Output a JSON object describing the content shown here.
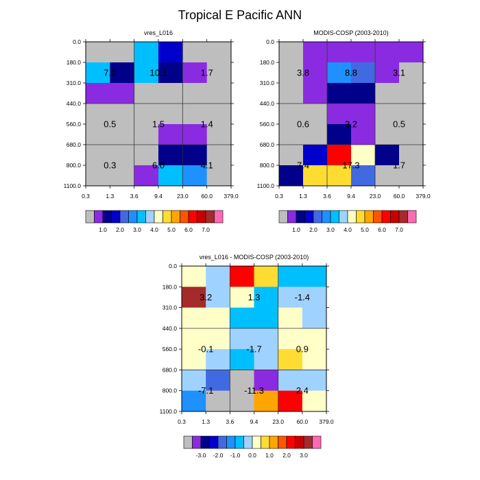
{
  "title": "Tropical E Pacific ANN",
  "colorbar_levels": {
    "abs": [
      "1.0",
      "2.0",
      "3.0",
      "4.0",
      "5.0",
      "6.0",
      "7.0"
    ],
    "diff": [
      "-3.0",
      "-2.0",
      "-1.0",
      "0.0",
      "1.0",
      "2.0",
      "3.0"
    ]
  },
  "colors": {
    "gray": "#bebebe",
    "purple": "#8a2be2",
    "darkblue": "#00008b",
    "blue": "#0000cd",
    "royal": "#4169e1",
    "dodger": "#1e90ff",
    "deepsky": "#00bfff",
    "lightblue": "#a0d2ff",
    "ivory": "#ffffc8",
    "gold": "#ffdc32",
    "orange": "#ffa500",
    "orangered": "#ff5500",
    "red": "#ff0000",
    "darkred": "#c80000",
    "brown": "#a52a2a",
    "pink": "#ff69b4"
  },
  "chart_data": [
    {
      "type": "heatmap",
      "title": "vres_L016",
      "x_ticks": [
        "0.3",
        "1.3",
        "3.6",
        "9.4",
        "23.0",
        "60.0",
        "379.0"
      ],
      "y_ticks": [
        "0.0",
        "180.0",
        "310.0",
        "440.0",
        "560.0",
        "680.0",
        "800.0",
        "1100.0"
      ],
      "cells": [
        [
          "gray",
          "gray",
          "deepsky",
          "blue",
          "gray",
          "gray"
        ],
        [
          "deepsky",
          "darkblue",
          "deepsky",
          "darkblue",
          "purple",
          "gray"
        ],
        [
          "purple",
          "purple",
          "gray",
          "gray",
          "gray",
          "gray"
        ],
        [
          "gray",
          "gray",
          "gray",
          "gray",
          "gray",
          "gray"
        ],
        [
          "gray",
          "gray",
          "gray",
          "purple",
          "purple",
          "gray"
        ],
        [
          "gray",
          "gray",
          "gray",
          "darkblue",
          "darkblue",
          "gray"
        ],
        [
          "gray",
          "gray",
          "purple",
          "deepsky",
          "dodger",
          "gray"
        ]
      ],
      "block_labels": [
        [
          "7.0",
          "10.1",
          "1.7"
        ],
        [
          "0.5",
          "1.5",
          "1.4"
        ],
        [
          "0.3",
          "6.0",
          "4.1"
        ]
      ]
    },
    {
      "type": "heatmap",
      "title": "MODIS-COSP (2003-2010)",
      "x_ticks": [
        "0.3",
        "1.3",
        "3.6",
        "9.4",
        "23.0",
        "60.0",
        "379.0"
      ],
      "y_ticks": [
        "0.0",
        "180.0",
        "310.0",
        "440.0",
        "560.0",
        "680.0",
        "800.0",
        "1100.0"
      ],
      "cells": [
        [
          "gray",
          "purple",
          "purple",
          "purple",
          "purple",
          "purple"
        ],
        [
          "gray",
          "purple",
          "dodger",
          "royal",
          "purple",
          "gray"
        ],
        [
          "gray",
          "purple",
          "darkblue",
          "darkblue",
          "gray",
          "gray"
        ],
        [
          "gray",
          "gray",
          "purple",
          "purple",
          "gray",
          "gray"
        ],
        [
          "gray",
          "gray",
          "darkblue",
          "purple",
          "gray",
          "gray"
        ],
        [
          "gray",
          "blue",
          "red",
          "ivory",
          "darkblue",
          "gray"
        ],
        [
          "darkblue",
          "gold",
          "gold",
          "royal",
          "gray",
          "gray"
        ]
      ],
      "block_labels": [
        [
          "3.8",
          "8.8",
          "3.1"
        ],
        [
          "0.6",
          "3.2",
          "0.5"
        ],
        [
          "7.4",
          "17.3",
          "1.7"
        ]
      ]
    },
    {
      "type": "heatmap",
      "title": "vres_L016 - MODIS-COSP (2003-2010)",
      "x_ticks": [
        "0.3",
        "1.3",
        "3.6",
        "9.4",
        "23.0",
        "60.0",
        "379.0"
      ],
      "y_ticks": [
        "0.0",
        "180.0",
        "310.0",
        "440.0",
        "560.0",
        "680.0",
        "800.0",
        "1100.0"
      ],
      "cells": [
        [
          "ivory",
          "lightblue",
          "red",
          "gold",
          "deepsky",
          "deepsky"
        ],
        [
          "brown",
          "lightblue",
          "ivory",
          "deepsky",
          "lightblue",
          "lightblue"
        ],
        [
          "ivory",
          "ivory",
          "deepsky",
          "deepsky",
          "ivory",
          "lightblue"
        ],
        [
          "ivory",
          "ivory",
          "lightblue",
          "lightblue",
          "ivory",
          "ivory"
        ],
        [
          "ivory",
          "lightblue",
          "deepsky",
          "lightblue",
          "gold",
          "ivory"
        ],
        [
          "lightblue",
          "royal",
          "gray",
          "purple",
          "lightblue",
          "lightblue"
        ],
        [
          "dodger",
          "gray",
          "gray",
          "orange",
          "red",
          "ivory"
        ]
      ],
      "block_labels": [
        [
          "3.2",
          "1.3",
          "-1.4"
        ],
        [
          "-0.1",
          "-1.7",
          "0.9"
        ],
        [
          "-7.1",
          "-11.3",
          "2.4"
        ]
      ]
    }
  ]
}
